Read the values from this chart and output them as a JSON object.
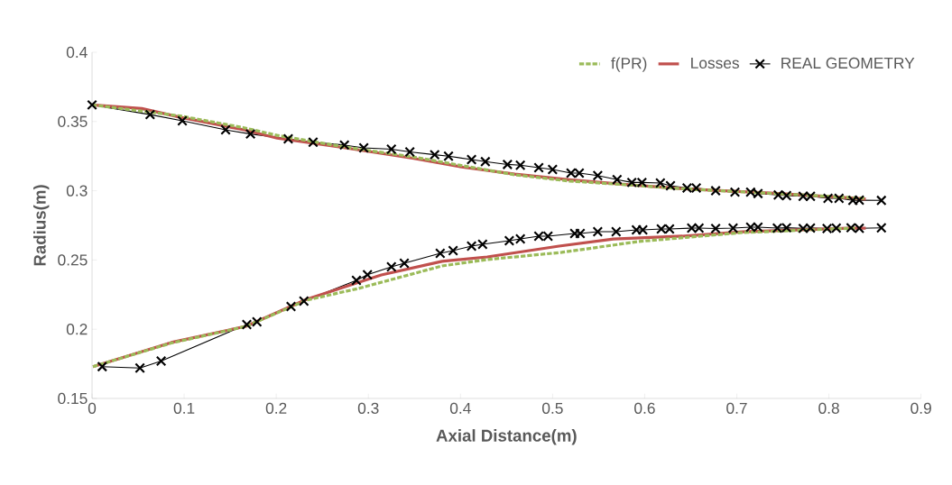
{
  "chart_data": {
    "type": "line",
    "xlabel": "Axial Distance(m)",
    "ylabel": "Radius(m)",
    "xlim": [
      0,
      0.9
    ],
    "ylim": [
      0.15,
      0.4
    ],
    "xticks": [
      0,
      0.1,
      0.2,
      0.3,
      0.4,
      0.5,
      0.6,
      0.7,
      0.8,
      0.9
    ],
    "yticks": [
      0.15,
      0.2,
      0.25,
      0.3,
      0.35,
      0.4
    ],
    "grid": false,
    "legend": "top right",
    "series": [
      {
        "name": "f(PR)",
        "color": "#9bbb59",
        "line_style": "dashed",
        "marker": "none",
        "x": [
          0,
          0.096,
          0.165,
          0.201,
          0.275,
          0.348,
          0.403,
          0.459,
          0.518,
          0.576,
          0.642,
          0.741,
          0.84,
          null,
          0.001,
          0.086,
          0.167,
          0.233,
          0.289,
          0.38,
          0.429,
          0.51,
          0.593,
          0.706,
          0.829
        ],
        "values": [
          0.362,
          0.354,
          0.3455,
          0.34,
          0.3315,
          0.3245,
          0.318,
          0.3115,
          0.307,
          0.3045,
          0.3014,
          0.298,
          0.2945,
          null,
          0.173,
          0.19,
          0.202,
          0.221,
          0.2294,
          0.2457,
          0.2503,
          0.2555,
          0.2633,
          0.2698,
          0.273
        ]
      },
      {
        "name": "Losses",
        "color": "#c0504d",
        "line_style": "solid",
        "marker": "none",
        "x": [
          0,
          0.054,
          0.096,
          0.165,
          0.201,
          0.275,
          0.348,
          0.403,
          0.459,
          0.518,
          0.576,
          0.642,
          0.741,
          0.821,
          0.84,
          null,
          0.001,
          0.086,
          0.167,
          0.233,
          0.314,
          0.38,
          0.429,
          0.507,
          0.566,
          0.641,
          0.706,
          0.821,
          0.84
        ],
        "values": [
          0.362,
          0.3594,
          0.353,
          0.344,
          0.338,
          0.331,
          0.3235,
          0.317,
          0.312,
          0.3079,
          0.3047,
          0.3014,
          0.2982,
          0.2949,
          0.294,
          null,
          0.173,
          0.1904,
          0.2021,
          0.2216,
          0.2392,
          0.249,
          0.2522,
          0.26,
          0.2652,
          0.2672,
          0.2704,
          0.273,
          0.273
        ]
      },
      {
        "name": "REAL GEOMETRY",
        "color": "#000000",
        "line_style": "solid",
        "marker": "cross",
        "x": [
          0,
          0.063,
          0.098,
          0.145,
          0.172,
          0.213,
          0.24,
          0.274,
          0.295,
          0.325,
          0.345,
          0.372,
          0.387,
          0.412,
          0.427,
          0.451,
          0.465,
          0.485,
          0.5,
          0.52,
          0.529,
          0.549,
          0.57,
          0.586,
          0.597,
          0.617,
          0.628,
          0.646,
          0.656,
          0.677,
          0.698,
          0.715,
          0.723,
          0.745,
          0.754,
          0.772,
          0.78,
          0.799,
          0.811,
          0.826,
          0.833,
          0.857,
          null,
          0.011,
          0.052,
          0.075,
          0.168,
          0.179,
          0.216,
          0.23,
          0.287,
          0.299,
          0.325,
          0.339,
          0.378,
          0.392,
          0.412,
          0.424,
          0.453,
          0.465,
          0.485,
          0.495,
          0.524,
          0.53,
          0.549,
          0.569,
          0.591,
          0.598,
          0.618,
          0.627,
          0.651,
          0.659,
          0.677,
          0.696,
          0.715,
          0.723,
          0.744,
          0.754,
          0.772,
          0.78,
          0.798,
          0.808,
          0.824,
          0.833,
          0.857
        ],
        "values": [
          0.362,
          0.355,
          0.3505,
          0.344,
          0.341,
          0.3375,
          0.335,
          0.333,
          0.331,
          0.33,
          0.328,
          0.326,
          0.325,
          0.3225,
          0.321,
          0.319,
          0.3185,
          0.3167,
          0.3154,
          0.3128,
          0.3128,
          0.311,
          0.308,
          0.306,
          0.306,
          0.3056,
          0.3036,
          0.302,
          0.302,
          0.3,
          0.299,
          0.299,
          0.298,
          0.297,
          0.2965,
          0.296,
          0.296,
          0.2945,
          0.2945,
          0.293,
          0.2932,
          0.293,
          null,
          0.173,
          0.172,
          0.177,
          0.2034,
          0.2053,
          0.2164,
          0.2203,
          0.2353,
          0.2393,
          0.245,
          0.2477,
          0.2548,
          0.2568,
          0.26,
          0.2613,
          0.2639,
          0.2652,
          0.2672,
          0.2672,
          0.2691,
          0.2691,
          0.2704,
          0.2704,
          0.2717,
          0.2717,
          0.2724,
          0.2724,
          0.273,
          0.273,
          0.2727,
          0.273,
          0.2737,
          0.2737,
          0.273,
          0.2733,
          0.2728,
          0.2731,
          0.2727,
          0.273,
          0.2733,
          0.2729,
          0.2732
        ]
      }
    ]
  }
}
